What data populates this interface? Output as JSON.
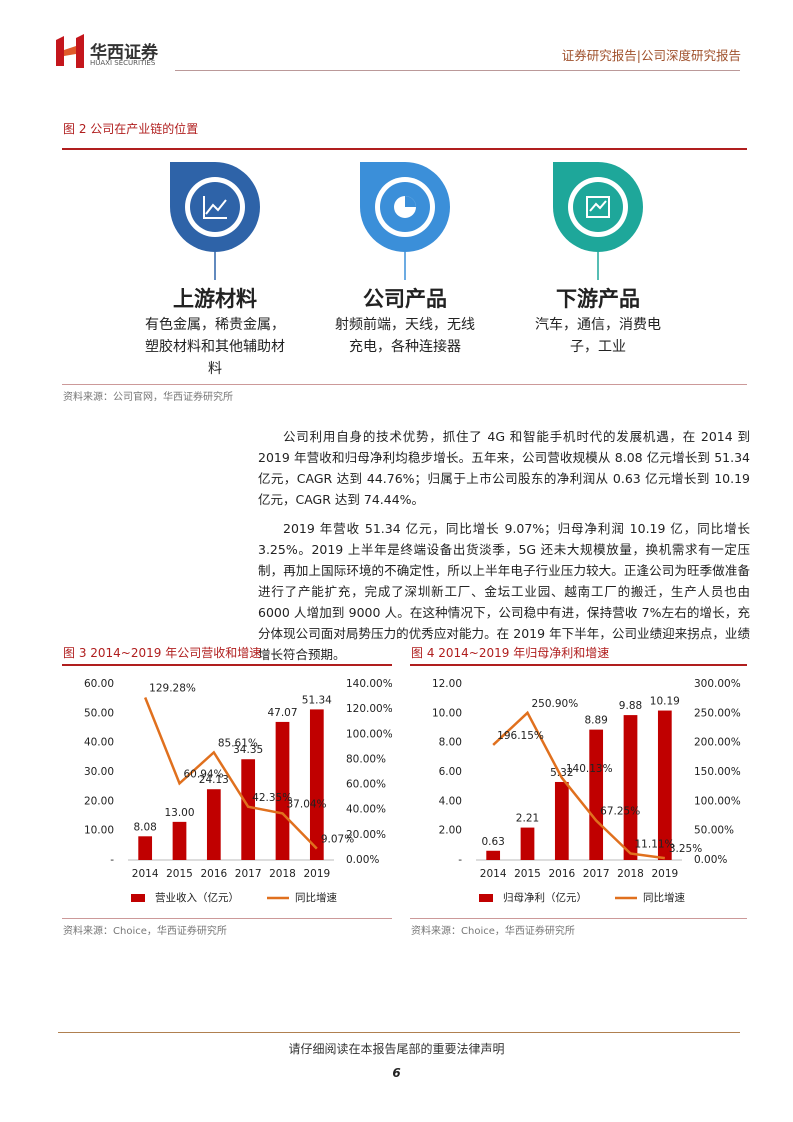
{
  "header": {
    "company": "华西证券",
    "company_en": "HUAXI SECURITIES",
    "report_type": "证券研究报告|公司深度研究报告"
  },
  "figure2": {
    "title": "图 2  公司在产业链的位置",
    "nodes": [
      {
        "label": "上游材料",
        "desc": "有色金属，稀贵金属，塑胶材料和其他辅助材料"
      },
      {
        "label": "公司产品",
        "desc": "射频前端，天线，无线充电，各种连接器"
      },
      {
        "label": "下游产品",
        "desc": "汽车，通信，消费电子，工业"
      }
    ],
    "source": "资料来源：公司官网，华西证券研究所"
  },
  "body": {
    "paragraphs": [
      "公司利用自身的技术优势，抓住了 4G 和智能手机时代的发展机遇，在 2014 到 2019 年营收和归母净利均稳步增长。五年来，公司营收规模从 8.08 亿元增长到 51.34 亿元，CAGR 达到 44.76%；归属于上市公司股东的净利润从 0.63 亿元增长到 10.19 亿元，CAGR 达到 74.44%。",
      "2019 年营收 51.34 亿元，同比增长 9.07%；归母净利润 10.19 亿，同比增长 3.25%。2019 上半年是终端设备出货淡季，5G 还未大规模放量，换机需求有一定压制，再加上国际环境的不确定性，所以上半年电子行业压力较大。正逢公司为旺季做准备进行了产能扩充，完成了深圳新工厂、金坛工业园、越南工厂的搬迁，生产人员也由 6000 人增加到 9000 人。在这种情况下，公司稳中有进，保持营收 7%左右的增长，充分体现公司面对局势压力的优秀应对能力。在 2019 年下半年，公司业绩迎来拐点，业绩增长符合预期。"
    ]
  },
  "chart_data": [
    {
      "type": "bar",
      "title": "图 3  2014~2019 年公司营收和增速",
      "source": "资料来源：Choice，华西证券研究所",
      "categories": [
        "2014",
        "2015",
        "2016",
        "2017",
        "2018",
        "2019"
      ],
      "series": [
        {
          "name": "营业收入（亿元）",
          "type": "bar",
          "color": "#c00000",
          "values": [
            8.08,
            13.0,
            24.13,
            34.35,
            47.07,
            51.34
          ],
          "value_labels": [
            "8.08",
            "13.00",
            "24.13",
            "34.35",
            "47.07",
            "51.34"
          ]
        },
        {
          "name": "同比增速",
          "type": "line",
          "axis": "y2",
          "color": "#e0701e",
          "values": [
            129.28,
            60.94,
            85.61,
            42.35,
            37.04,
            9.07
          ],
          "value_labels": [
            "129.28%",
            "60.94%",
            "85.61%",
            "42.35%",
            "37.04%",
            "9.07%"
          ]
        }
      ],
      "ylim": [
        0,
        60
      ],
      "yticks": [
        {
          "value": 0,
          "label": "-"
        },
        {
          "value": 10,
          "label": "10.00"
        },
        {
          "value": 20,
          "label": "20.00"
        },
        {
          "value": 30,
          "label": "30.00"
        },
        {
          "value": 40,
          "label": "40.00"
        },
        {
          "value": 50,
          "label": "50.00"
        },
        {
          "value": 60,
          "label": "60.00"
        }
      ],
      "y2lim": [
        0,
        140
      ],
      "y2ticks": [
        {
          "value": 0,
          "label": "0.00%"
        },
        {
          "value": 20,
          "label": "20.00%"
        },
        {
          "value": 40,
          "label": "40.00%"
        },
        {
          "value": 60,
          "label": "60.00%"
        },
        {
          "value": 80,
          "label": "80.00%"
        },
        {
          "value": 100,
          "label": "100.00%"
        },
        {
          "value": 120,
          "label": "120.00%"
        },
        {
          "value": 140,
          "label": "140.00%"
        }
      ]
    },
    {
      "type": "bar",
      "title": "图 4  2014~2019 年归母净利和增速",
      "source": "资料来源：Choice，华西证券研究所",
      "categories": [
        "2014",
        "2015",
        "2016",
        "2017",
        "2018",
        "2019"
      ],
      "series": [
        {
          "name": "归母净利（亿元）",
          "type": "bar",
          "color": "#c00000",
          "values": [
            0.63,
            2.21,
            5.32,
            8.89,
            9.88,
            10.19
          ],
          "value_labels": [
            "0.63",
            "2.21",
            "5.32",
            "8.89",
            "9.88",
            "10.19"
          ]
        },
        {
          "name": "同比增速",
          "type": "line",
          "axis": "y2",
          "color": "#e0701e",
          "values": [
            196.15,
            250.9,
            140.13,
            67.25,
            11.11,
            3.25
          ],
          "value_labels": [
            "196.15%",
            "250.90%",
            "140.13%",
            "67.25%",
            "11.11%",
            "3.25%"
          ]
        }
      ],
      "ylim": [
        0,
        12
      ],
      "yticks": [
        {
          "value": 0,
          "label": "-"
        },
        {
          "value": 2,
          "label": "2.00"
        },
        {
          "value": 4,
          "label": "4.00"
        },
        {
          "value": 6,
          "label": "6.00"
        },
        {
          "value": 8,
          "label": "8.00"
        },
        {
          "value": 10,
          "label": "10.00"
        },
        {
          "value": 12,
          "label": "12.00"
        }
      ],
      "y2lim": [
        0,
        300
      ],
      "y2ticks": [
        {
          "value": 0,
          "label": "0.00%"
        },
        {
          "value": 50,
          "label": "50.00%"
        },
        {
          "value": 100,
          "label": "100.00%"
        },
        {
          "value": 150,
          "label": "150.00%"
        },
        {
          "value": 200,
          "label": "200.00%"
        },
        {
          "value": 250,
          "label": "250.00%"
        },
        {
          "value": 300,
          "label": "300.00%"
        }
      ]
    }
  ],
  "footer": {
    "notice": "请仔细阅读在本报告尾部的重要法律声明",
    "page": "6"
  }
}
